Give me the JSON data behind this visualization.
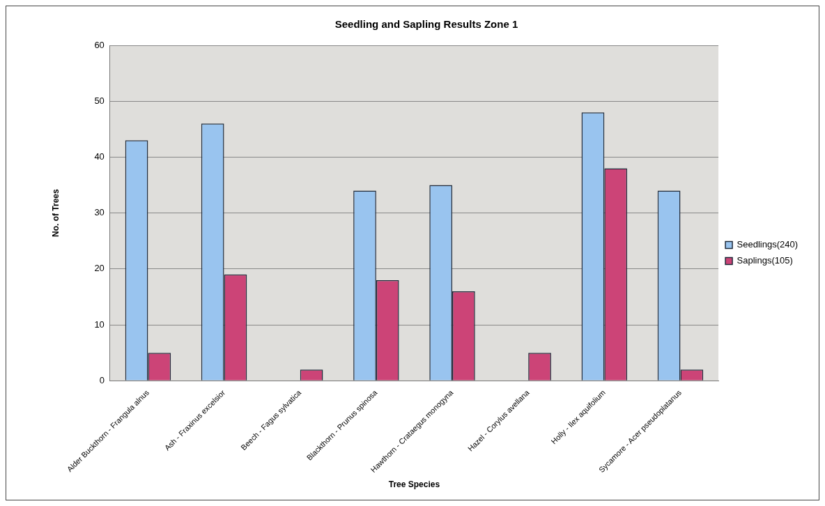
{
  "chart_data": {
    "type": "bar",
    "title": "Seedling and Sapling Results Zone 1",
    "xlabel": "Tree Species",
    "ylabel": "No. of Trees",
    "categories": [
      "Alder Buckthorn - Frangula alnus",
      "Ash - Fraxinus excelsior",
      "Beech - Fagus sylvatica",
      "Blackthorn - Prunus spinosa",
      "Hawthorn - Crataegus monogyna",
      "Hazel - Corylus avellana",
      "Holly - Ilex aquifolium",
      "Sycamore - Acer pseudoplatanus"
    ],
    "series": [
      {
        "name": "Seedlings(240)",
        "color": "#99c4ef",
        "values": [
          43,
          46,
          0,
          34,
          35,
          0,
          48,
          34
        ]
      },
      {
        "name": "Saplings(105)",
        "color": "#cc4477",
        "values": [
          5,
          19,
          2,
          18,
          16,
          5,
          38,
          2
        ]
      }
    ],
    "ylim": [
      0,
      60
    ],
    "yticks": [
      0,
      10,
      20,
      30,
      40,
      50,
      60
    ],
    "grid": "y",
    "legend": "right"
  }
}
